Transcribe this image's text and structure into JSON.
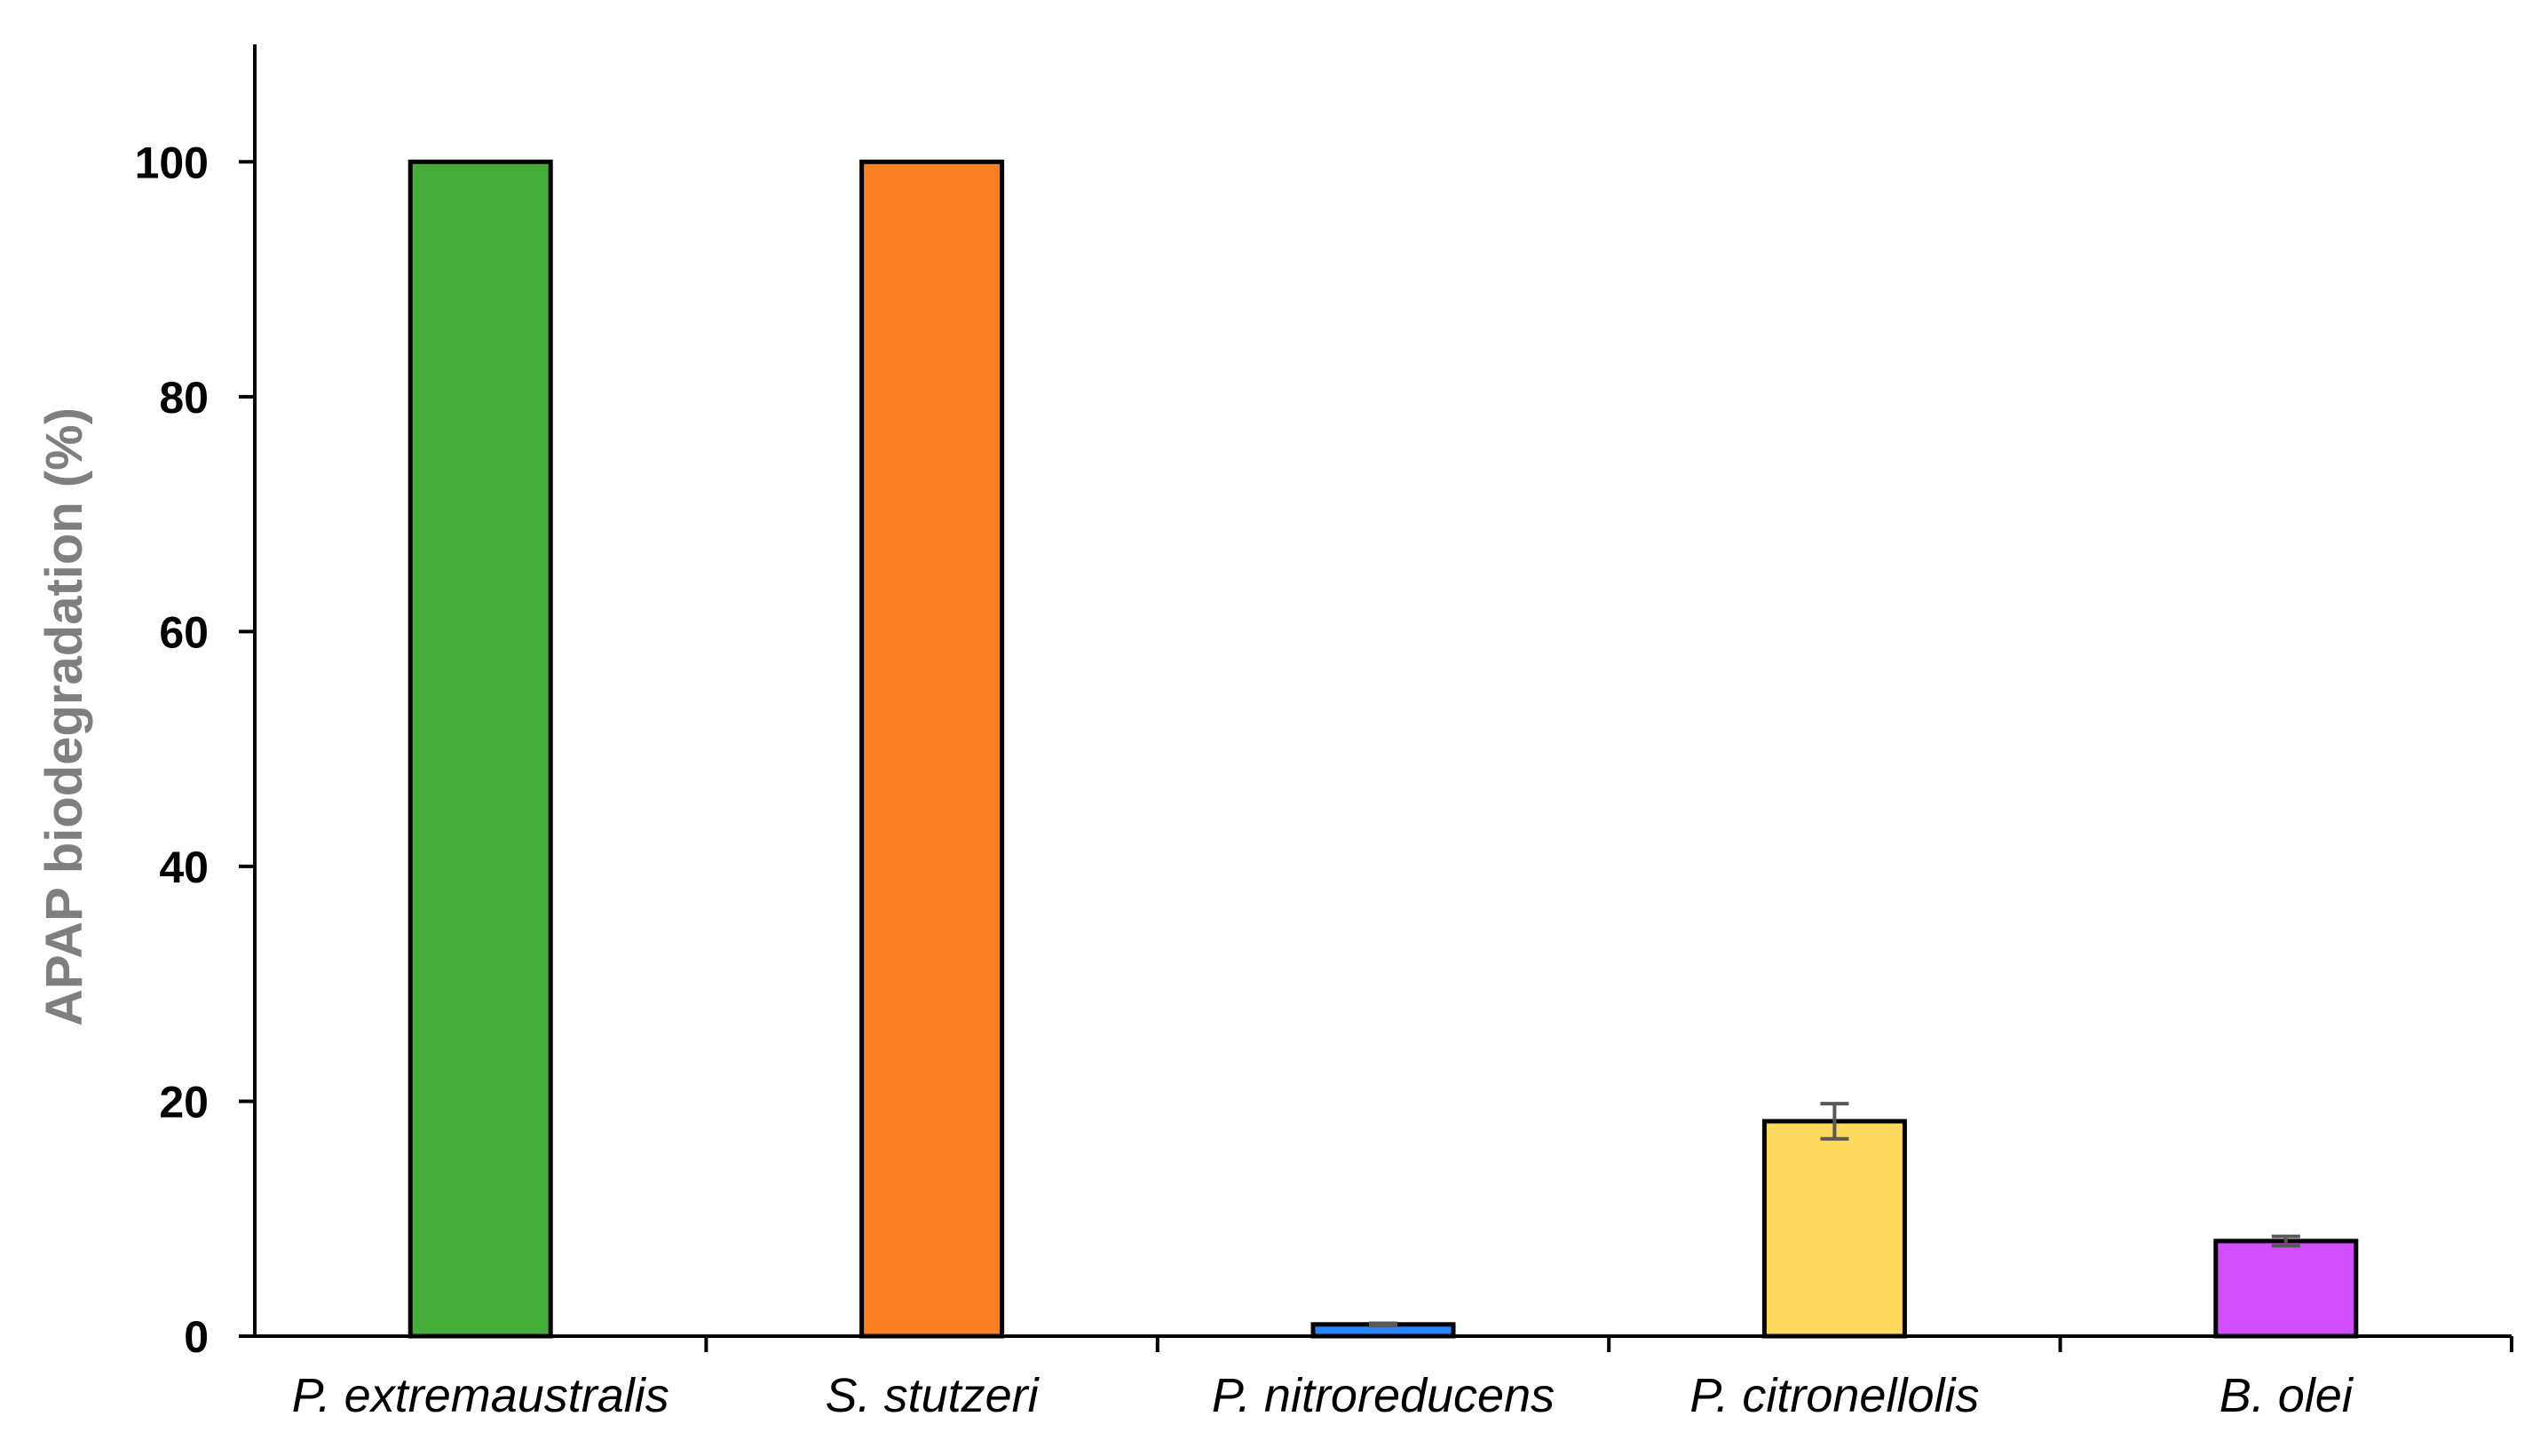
{
  "chart_data": {
    "type": "bar",
    "title": "",
    "xlabel": "",
    "ylabel": "APAP biodegradation (%)",
    "ylim": [
      0,
      110
    ],
    "yticks": [
      0,
      20,
      40,
      60,
      80,
      100
    ],
    "grid": false,
    "legend": "none",
    "categories": [
      "P. extremaustralis",
      "S. stutzeri",
      "P. nitroreducens",
      "P. citronellolis",
      "B. olei"
    ],
    "values": [
      100,
      100,
      1,
      18.3,
      8.1
    ],
    "errors": [
      0,
      0,
      0.1,
      1.5,
      0.4
    ],
    "colors": [
      "#45ae3b",
      "#fd7f23",
      "#2887ff",
      "#ffd95b",
      "#d14dff"
    ]
  }
}
